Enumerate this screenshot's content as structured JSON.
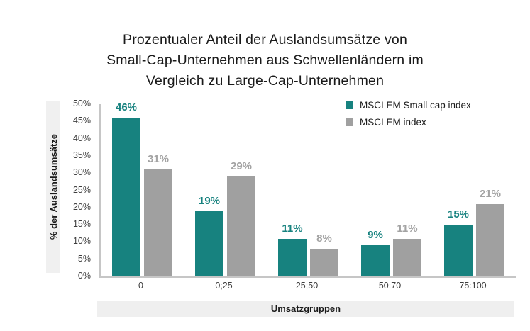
{
  "title": {
    "lines": [
      "Prozentualer Anteil der Auslandsumsätze von",
      "Small-Cap-Unternehmen aus Schwellenländern im",
      "Vergleich zu Large-Cap-Unternehmen"
    ]
  },
  "chart_data": {
    "type": "bar",
    "title": "Prozentualer Anteil der Auslandsumsätze von Small-Cap-Unternehmen aus Schwellenländern im Vergleich zu Large-Cap-Unternehmen",
    "categories": [
      "0",
      "0;25",
      "25;50",
      "50:70",
      "75:100"
    ],
    "series": [
      {
        "name": "MSCI EM Small cap index",
        "color": "#17827F",
        "label_color": "#17827F",
        "values": [
          46,
          19,
          11,
          9,
          15
        ]
      },
      {
        "name": "MSCI EM index",
        "color": "#A0A0A0",
        "label_color": "#A3A3A3",
        "values": [
          31,
          29,
          8,
          11,
          21
        ]
      }
    ],
    "xlabel": "Umsatzgruppen",
    "ylabel": "% der Auslandsumsätze",
    "ylim": [
      0,
      50
    ],
    "ytick_step": 5,
    "yticks": [
      "50%",
      "45%",
      "40%",
      "35%",
      "30%",
      "25%",
      "20%",
      "15%",
      "10%",
      "5%",
      "0%"
    ],
    "value_suffix": "%",
    "legend_position": "top-right",
    "grid": false
  },
  "colors": {
    "series1": "#17827F",
    "series2": "#A0A0A0",
    "series2_label": "#A3A3A3",
    "strip_background": "#F0F0F0",
    "axis_line": "#C6C6C6",
    "tick_text": "#3D3D3D",
    "title_text": "#1A1A1A"
  }
}
